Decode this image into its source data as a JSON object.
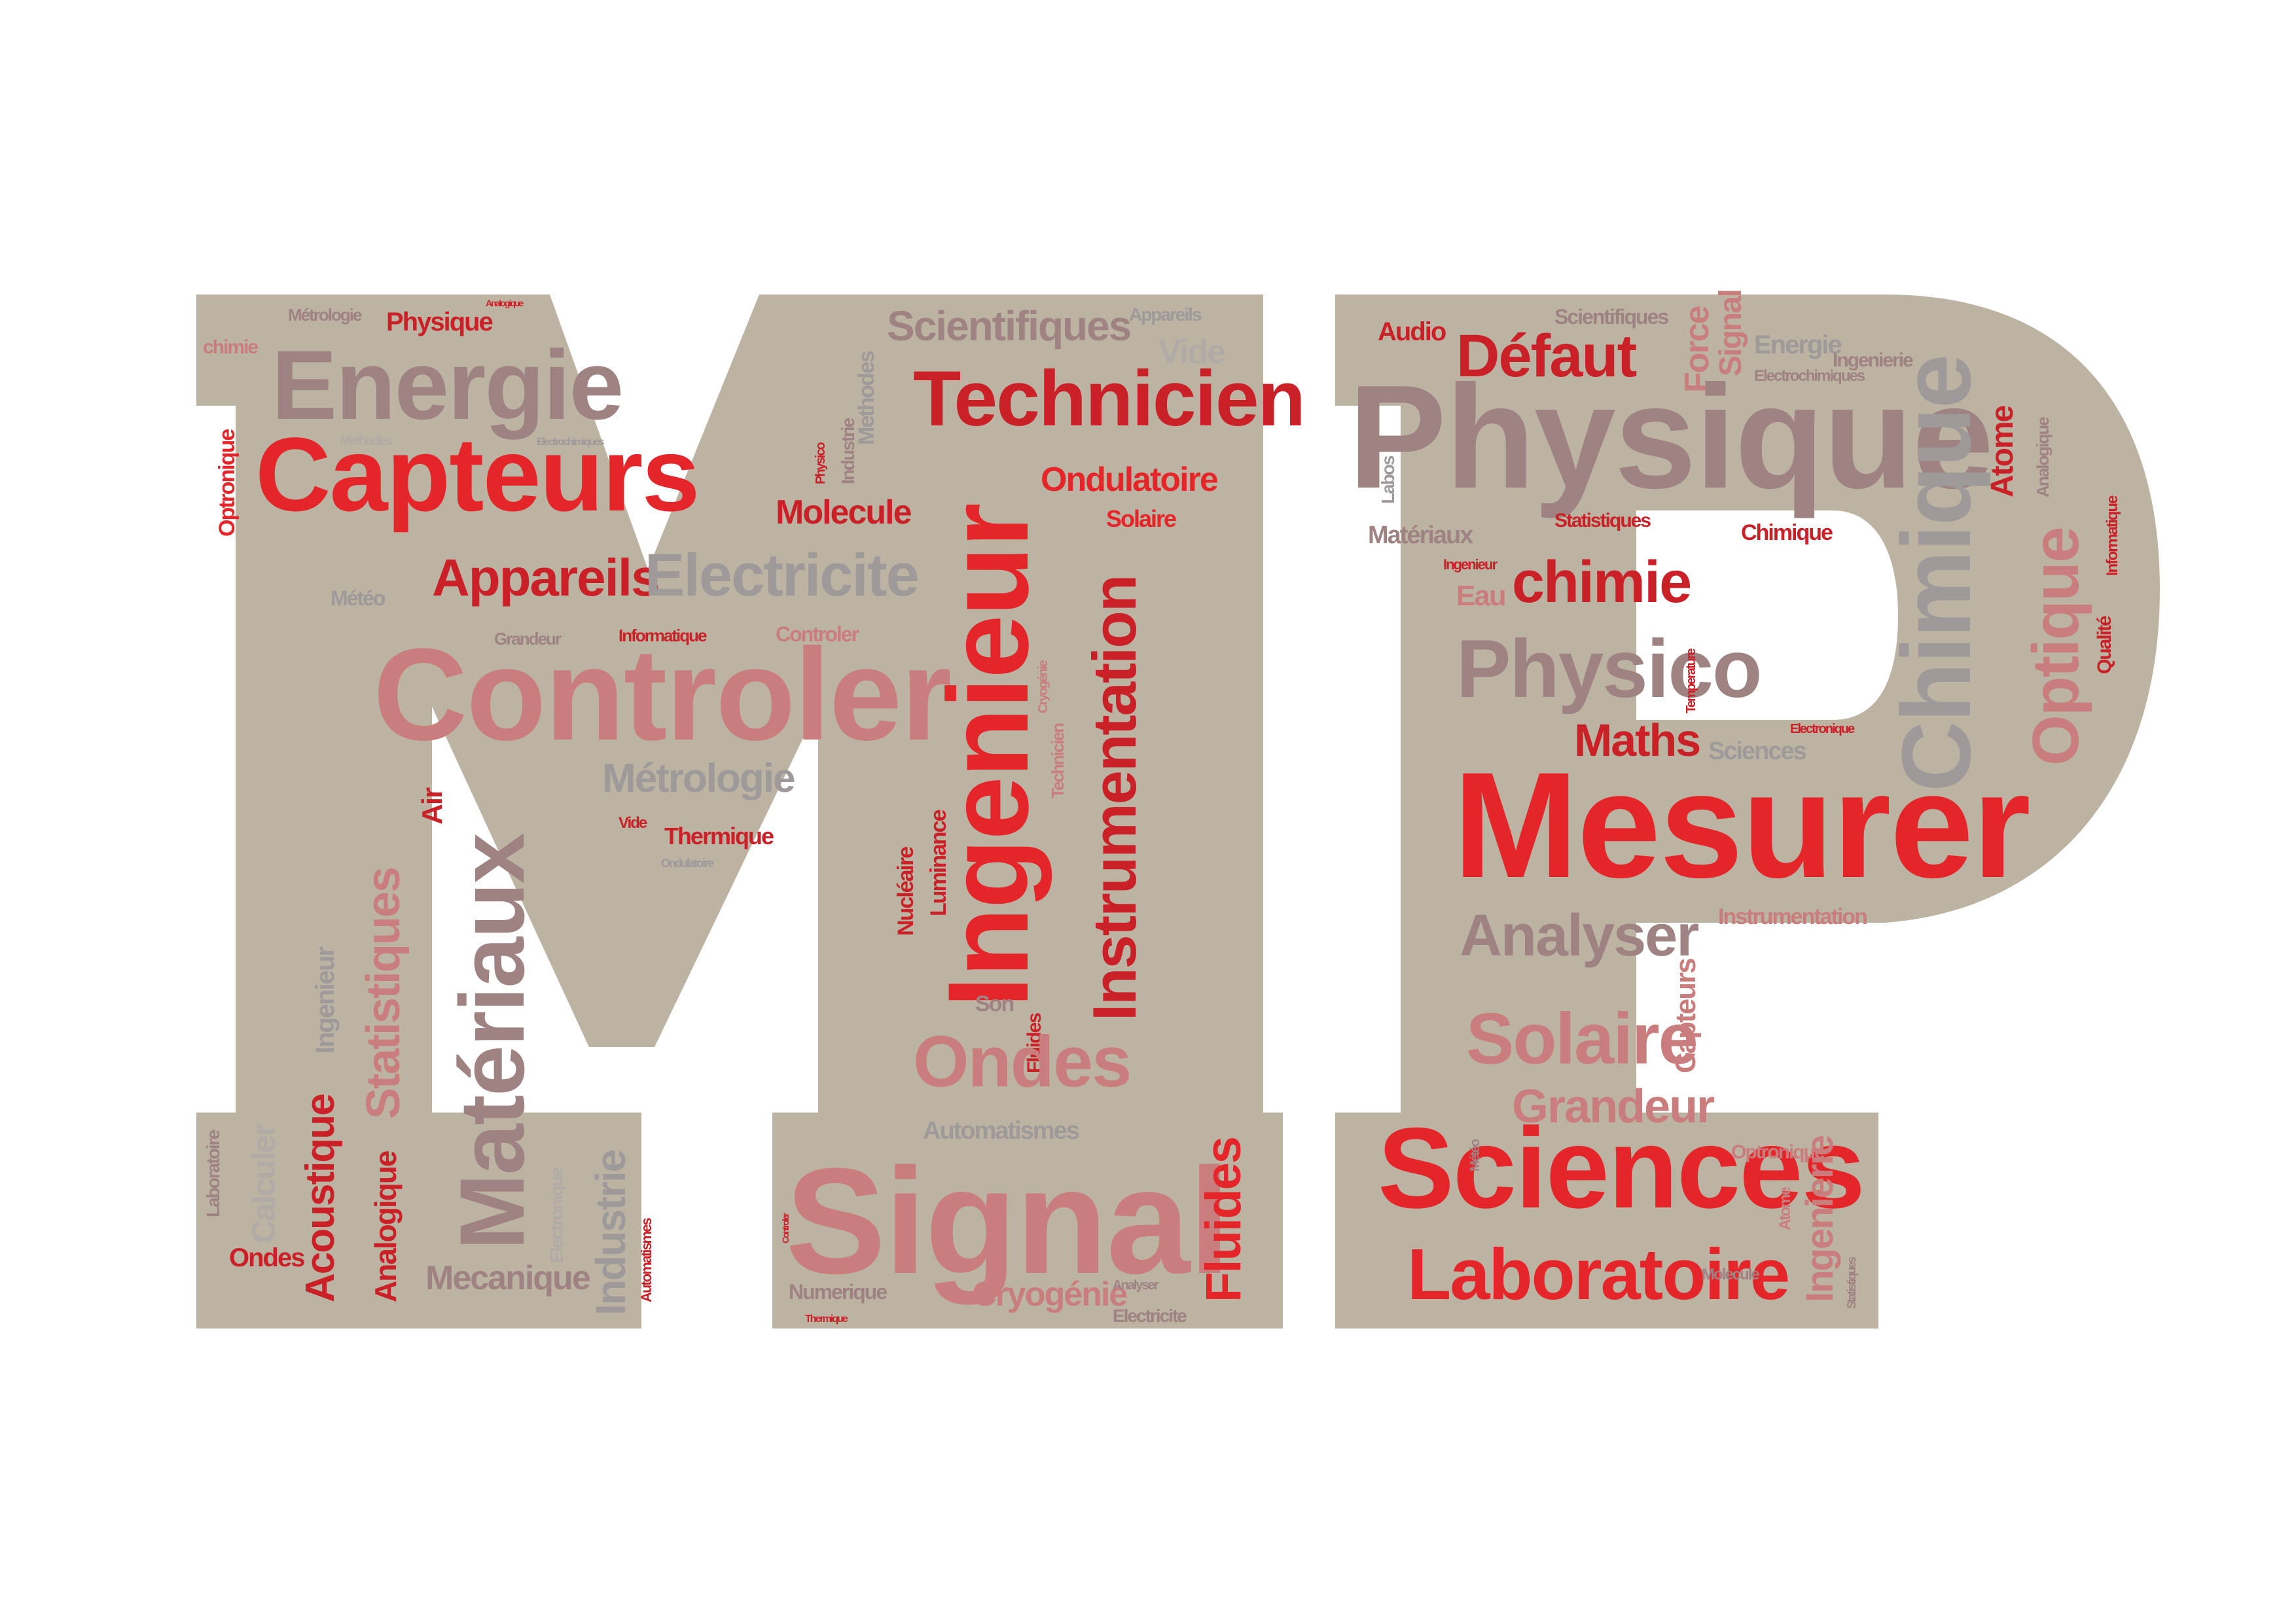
{
  "palette": {
    "background": "#ffffff",
    "letter_fill": "#bdb3a3",
    "red": "#e4262a",
    "dark_red": "#c92127",
    "rose": "#c97d7d",
    "mauve": "#9f8282",
    "grey": "#9e9a9a",
    "light_grey": "#b1aba6"
  },
  "words": {
    "m": {
      "metrologie_top": "Métrologie",
      "physique_top": "Physique",
      "analogique_top": "Analogique",
      "chimie": "chimie",
      "energie": "Energie",
      "optronique": "Optronique",
      "methodes": "Methodes",
      "capteurs": "Capteurs",
      "electrochimiques": "Electrochimiques",
      "appareils": "Appareils",
      "meteo": "Météo",
      "electricite": "Electricite",
      "grandeur": "Grandeur",
      "informatique_h": "Informatique",
      "controler_big": "Controler",
      "controler_small": "Controler",
      "informatique_v": "Informatique",
      "metrologie_mid": "Métrologie",
      "materiaux": "Matériaux",
      "statistiques": "Statistiques",
      "air": "Air",
      "vide": "Vide",
      "thermique": "Thermique",
      "ondulatoire": "Ondulatoire",
      "ingenieur_small": "Ingenieur",
      "laboratoire": "Laboratoire",
      "calculer": "Calculer",
      "acoustique": "Acoustique",
      "analogique": "Analogique",
      "industrie": "Industrie",
      "electronique": "Electronique",
      "automatismes_v": "Automatismes",
      "ondes": "Ondes",
      "mecanique": "Mecanique",
      "defaut": "Défaut"
    },
    "t": {
      "scientifiques": "Scientifiques",
      "appareils": "Appareils",
      "technicien": "Technicien",
      "vide": "Vide",
      "ondulatoire": "Ondulatoire",
      "molecule": "Molecule",
      "solaire": "Solaire",
      "industrie": "Industrie",
      "physico": "Physico",
      "methodes": "Methodes",
      "ingenieur": "Ingenieur",
      "instrumentation": "Instrumentation",
      "luminance": "Luminance",
      "nucleaire": "Nucléaire",
      "technicien_v": "Technicien",
      "cryogenie_v": "Cryogénie",
      "fluides_v": "Fluides",
      "ondes": "Ondes",
      "son": "Son",
      "signal": "Signal",
      "automatismes": "Automatismes",
      "fluides": "Fluides",
      "numerique": "Numerique",
      "cryogenie": "Cryogénie",
      "electricite": "Electricite",
      "thermique": "Thermique",
      "analyser": "Analyser",
      "controler": "Controler"
    },
    "p": {
      "audio": "Audio",
      "scientifiques": "Scientifiques",
      "defaut": "Défaut",
      "force": "Force",
      "signal": "Signal",
      "energie": "Energie",
      "ingenierie": "Ingenierie",
      "electrochimiques": "Electrochimiques",
      "physique": "Physique",
      "chimique": "Chimique",
      "atome": "Atome",
      "optique": "Optique",
      "analogique": "Analogique",
      "informatique": "Informatique",
      "materiaux": "Matériaux",
      "statistiques": "Statistiques",
      "chimique_small": "Chimique",
      "chimie": "chimie",
      "eau": "Eau",
      "physico": "Physico",
      "maths": "Maths",
      "sciences_small": "Sciences",
      "electronique": "Electronique",
      "mesurer": "Mesurer",
      "analyser": "Analyser",
      "instrumentation": "Instrumentation",
      "solaire": "Solaire",
      "capteurs": "Capteurs",
      "grandeur": "Grandeur",
      "sciences": "Sciences",
      "laboratoire": "Laboratoire",
      "ingenierie_v": "Ingenierie",
      "atome_v": "Atome",
      "optronique": "Optronique",
      "qualite": "Qualité",
      "labos": "Labos",
      "ingenieur": "Ingenieur",
      "statistiques_v": "Statistiques",
      "temperature": "Temperature",
      "meteo": "Météo",
      "molecule": "Molecule"
    }
  }
}
